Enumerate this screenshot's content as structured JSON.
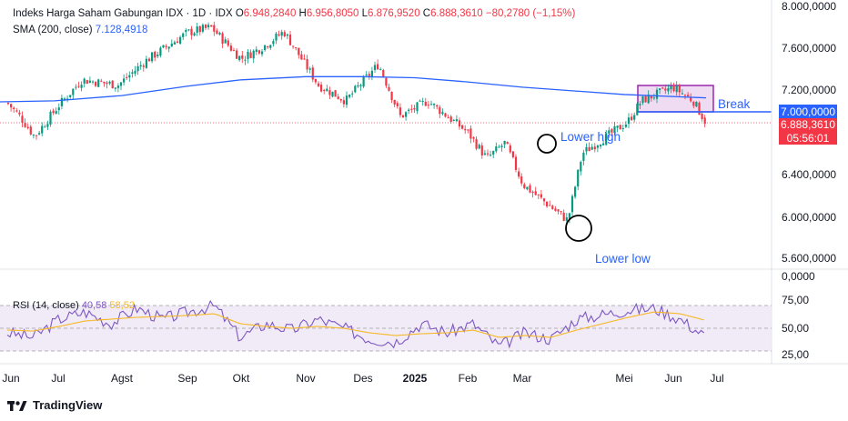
{
  "header": {
    "symbol": "Indeks Harga Saham Gabungan IDX · 1D · IDX",
    "o_label": "O",
    "o_value": "6.948,2840",
    "h_label": "H",
    "h_value": "6.956,8050",
    "l_label": "L",
    "l_value": "6.876,9520",
    "c_label": "C",
    "c_value": "6.888,3610",
    "change": "−80,2780 (−1,15%)",
    "sma_label": "SMA (200, close)",
    "sma_value": "7.128,4918",
    "rsi_label": "RSI (14, close)",
    "rsi_value": "40,58",
    "rsi_ma_value": "58,52"
  },
  "annotations": {
    "lower_high": "Lower high",
    "lower_low": "Lower low",
    "break": "Break"
  },
  "price_tags": {
    "line_level": "7.000,0000",
    "last_price": "6.888,3610",
    "countdown": "05:56:01"
  },
  "branding": {
    "name": "TradingView"
  },
  "colors": {
    "up": "#089981",
    "down": "#f23645",
    "sma": "#2962ff",
    "rsi": "#7e57c2",
    "rsi_ma": "#f7b825",
    "box_border": "#9c27b0",
    "box_fill": "#e1bee7",
    "break_line": "#2962ff"
  },
  "chart_data": [
    {
      "type": "candlestick",
      "title": "Indeks Harga Saham Gabungan IDX",
      "x_ticks": [
        "Jun",
        "Jul",
        "Agst",
        "Sep",
        "Okt",
        "Nov",
        "Des",
        "2025",
        "Feb",
        "Mar",
        "Mei",
        "Jun",
        "Jul"
      ],
      "y_ticks": [
        "8.000,0000",
        "7.600,0000",
        "7.200,0000",
        "6.400,0000",
        "6.000,0000",
        "5.600,0000",
        "0,0000"
      ],
      "ylim": [
        5600,
        8000
      ],
      "close_path": [
        [
          "Jun",
          7080
        ],
        [
          "Jun",
          6950
        ],
        [
          "Jun",
          6760
        ],
        [
          "Jul",
          7050
        ],
        [
          "Jul",
          7300
        ],
        [
          "Agst",
          7250
        ],
        [
          "Agst",
          7480
        ],
        [
          "Sep",
          7750
        ],
        [
          "Sep",
          7800
        ],
        [
          "Okt",
          7500
        ],
        [
          "Okt",
          7620
        ],
        [
          "Nov",
          7760
        ],
        [
          "Nov",
          7250
        ],
        [
          "Des",
          7100
        ],
        [
          "Des",
          7450
        ],
        [
          "2025",
          6950
        ],
        [
          "2025",
          7100
        ],
        [
          "Feb",
          6800
        ],
        [
          "Feb",
          6550
        ],
        [
          "Mar",
          6700
        ],
        [
          "Mar",
          6300
        ],
        [
          "Mar",
          5960
        ],
        [
          "Mar",
          6600
        ],
        [
          "Mei",
          6900
        ],
        [
          "Mei",
          7100
        ],
        [
          "Jun",
          7230
        ],
        [
          "Jun",
          7100
        ],
        [
          "Jun",
          6888
        ]
      ],
      "sma_200": [
        [
          "Jun",
          7080
        ],
        [
          "Jul",
          7100
        ],
        [
          "Agst",
          7150
        ],
        [
          "Sep",
          7240
        ],
        [
          "Okt",
          7300
        ],
        [
          "Nov",
          7330
        ],
        [
          "Des",
          7330
        ],
        [
          "2025",
          7320
        ],
        [
          "Feb",
          7280
        ],
        [
          "Mar",
          7230
        ],
        [
          "Mei",
          7160
        ],
        [
          "Jun",
          7128
        ]
      ],
      "horizontal_level": 7000,
      "last_price": 6888.361,
      "annotations": [
        "Lower high",
        "Lower low",
        "Break"
      ]
    },
    {
      "type": "line",
      "title": "RSI (14, close)",
      "y_ticks": [
        "75,00",
        "50,00",
        "25,00"
      ],
      "ylim": [
        25,
        75
      ],
      "series": [
        {
          "name": "RSI",
          "values": [
            45,
            40,
            60,
            68,
            55,
            72,
            60,
            68,
            75,
            40,
            55,
            48,
            60,
            50,
            38,
            35,
            55,
            45,
            55,
            30,
            45,
            38,
            60,
            65,
            70,
            72,
            60,
            40.58
          ]
        },
        {
          "name": "RSI MA",
          "values": [
            48,
            47,
            52,
            58,
            60,
            62,
            63,
            64,
            66,
            55,
            52,
            50,
            52,
            50,
            45,
            42,
            44,
            45,
            48,
            40,
            42,
            40,
            48,
            55,
            62,
            68,
            66,
            58.52
          ]
        }
      ]
    }
  ]
}
